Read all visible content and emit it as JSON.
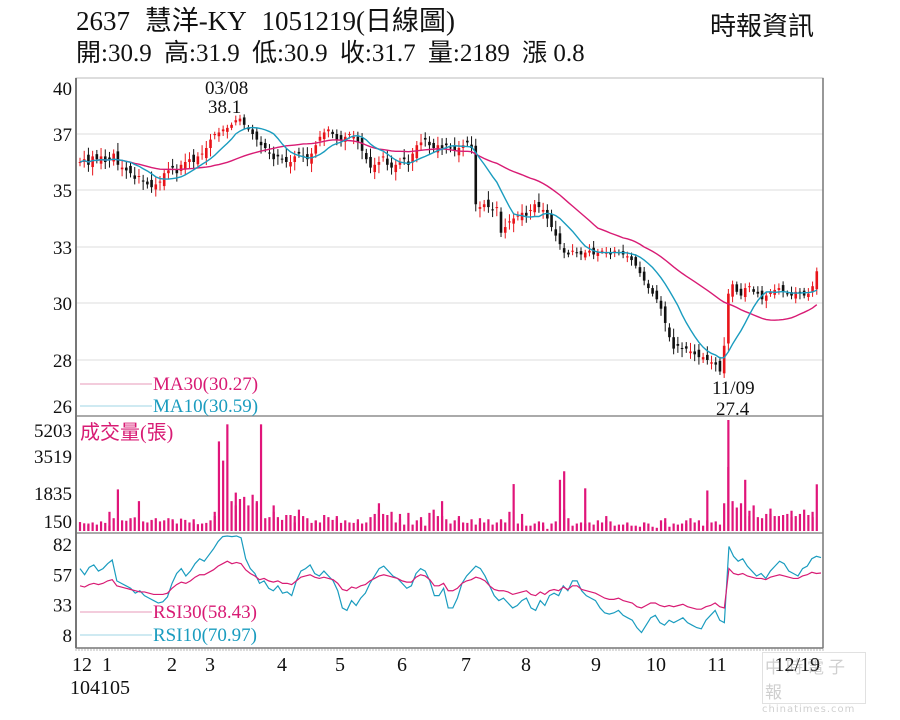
{
  "header": {
    "code": "2637",
    "name": "慧洋-KY",
    "date_label": "1051219(日線圖)",
    "source": "時報資訊"
  },
  "ohlc": [
    {
      "label": "開",
      "value": "30.9"
    },
    {
      "label": "高",
      "value": "31.9"
    },
    {
      "label": "低",
      "value": "30.9"
    },
    {
      "label": "收",
      "value": "31.7"
    },
    {
      "label": "量",
      "value": "2189"
    },
    {
      "label": "漲",
      "value": "0.8"
    }
  ],
  "colors": {
    "up": "#e8141a",
    "down": "#111111",
    "ma30": "#d81b74",
    "ma10": "#1a9cbf",
    "volume": "#e0157a",
    "grid": "#dddddd",
    "axis": "#777777"
  },
  "legend": {
    "ma30": "MA30(30.27)",
    "ma10": "MA10(30.59)",
    "volume_title": "成交量(張)",
    "rsi30": "RSI30(58.43)",
    "rsi10": "RSI10(70.97)"
  },
  "annotations": {
    "high_date": "03/08",
    "high_value": "38.1",
    "low_date": "11/09",
    "low_value": "27.4"
  },
  "watermark": {
    "top": "中時電子報",
    "bottom": "chinatimes.com"
  },
  "chart_data": {
    "type": "candlestick",
    "title": "2637 慧洋-KY 1051219(日線圖)",
    "price_axis": {
      "ticks": [
        "40",
        "37",
        "35",
        "33",
        "30",
        "28",
        "26"
      ],
      "values": [
        40,
        37,
        35,
        33,
        30,
        28,
        26
      ]
    },
    "volume_axis": {
      "ticks": [
        "5203",
        "3519",
        "1835",
        "150"
      ],
      "values": [
        5203,
        3519,
        1835,
        150
      ]
    },
    "rsi_axis": {
      "ticks": [
        "82",
        "57",
        "33",
        "8"
      ],
      "values": [
        82,
        57,
        33,
        8
      ]
    },
    "x_labels": [
      "12",
      "1",
      "2",
      "3",
      "4",
      "5",
      "6",
      "7",
      "8",
      "9",
      "10",
      "11",
      "12/19"
    ],
    "x_sub_label": "104105",
    "x_label_pos": [
      82,
      107,
      172,
      210,
      282,
      340,
      402,
      466,
      526,
      596,
      656,
      717,
      820
    ],
    "price_close": [
      36.0,
      36.1,
      35.9,
      36.2,
      36.1,
      36.2,
      36.0,
      36.1,
      36.3,
      35.9,
      35.8,
      35.7,
      35.6,
      35.4,
      35.5,
      35.3,
      35.2,
      35.1,
      35.2,
      35.3,
      35.6,
      35.7,
      35.8,
      35.6,
      35.9,
      36.0,
      36.1,
      36.0,
      36.2,
      36.3,
      36.5,
      36.8,
      37.0,
      37.1,
      37.3,
      37.4,
      37.6,
      37.9,
      38.0,
      37.6,
      37.3,
      37.0,
      36.8,
      36.6,
      36.5,
      36.3,
      36.1,
      36.2,
      36.1,
      36.0,
      36.0,
      36.2,
      36.3,
      36.2,
      36.1,
      36.3,
      36.6,
      36.9,
      37.1,
      37.3,
      37.0,
      36.8,
      36.8,
      36.9,
      37.0,
      36.9,
      36.7,
      36.4,
      36.1,
      35.8,
      35.9,
      36.0,
      36.2,
      35.9,
      35.8,
      35.9,
      36.0,
      36.1,
      35.9,
      36.3,
      36.6,
      36.7,
      36.8,
      36.6,
      36.5,
      36.6,
      36.5,
      36.6,
      36.5,
      36.4,
      36.5,
      36.6,
      36.7,
      36.5,
      34.5,
      34.4,
      34.5,
      34.4,
      34.3,
      34.4,
      33.5,
      33.7,
      33.9,
      34.0,
      34.1,
      34.2,
      34.1,
      34.3,
      34.5,
      34.4,
      34.3,
      34.0,
      33.7,
      33.4,
      33.1,
      32.7,
      32.6,
      32.8,
      32.7,
      32.6,
      32.7,
      32.8,
      32.6,
      32.7,
      32.8,
      32.7,
      32.6,
      32.8,
      32.7,
      32.6,
      32.5,
      32.3,
      32.0,
      31.6,
      31.2,
      30.8,
      30.5,
      30.2,
      29.8,
      29.3,
      28.8,
      28.4,
      28.5,
      28.4,
      28.4,
      28.3,
      28.2,
      28.1,
      28.1,
      28.0,
      27.9,
      27.8,
      27.5,
      28.5,
      30.5,
      31.0,
      30.6,
      30.4,
      30.8,
      30.9,
      30.6,
      30.5,
      30.2,
      30.4,
      30.6,
      30.7,
      30.8,
      30.6,
      30.5,
      30.4,
      30.6,
      30.5,
      30.4,
      30.5,
      30.9,
      31.7
    ],
    "volume": [
      420,
      360,
      280,
      350,
      400,
      300,
      450,
      380,
      250,
      900,
      600,
      1950,
      500,
      480,
      520,
      600,
      640,
      1400,
      450,
      400,
      520,
      480,
      600,
      450,
      500,
      600,
      550,
      480,
      350,
      580,
      520,
      400,
      550,
      350,
      320,
      350,
      380,
      500,
      900,
      700,
      4200,
      3300,
      5000,
      1400,
      1200,
      1800,
      1500,
      1600,
      1200,
      1700,
      1400,
      1300,
      5000,
      600,
      650,
      900,
      1200,
      650,
      520,
      750,
      750,
      400,
      700,
      1000,
      700,
      600,
      380,
      500,
      480,
      400,
      750,
      650,
      520,
      600,
      700,
      380,
      500,
      400,
      380,
      550,
      400,
      350,
      400,
      650,
      800,
      1000,
      1300,
      800,
      750,
      900,
      400,
      800,
      550,
      300,
      850,
      300,
      500,
      650,
      500,
      250,
      850,
      1000,
      700,
      1400,
      700,
      550,
      350,
      500,
      700,
      600,
      400,
      380,
      550,
      300,
      600,
      400,
      400,
      550,
      300,
      400,
      500,
      550,
      400,
      900,
      2200,
      350,
      800,
      300,
      250,
      250,
      350,
      450,
      400,
      250,
      100,
      350,
      450,
      2400,
      2800,
      1000,
      600,
      250,
      350,
      400,
      350,
      2000,
      400,
      300,
      500,
      400,
      700,
      500,
      450,
      250,
      300,
      300,
      400,
      350,
      250,
      250,
      200,
      400,
      400,
      350,
      200,
      150,
      500,
      400,
      600,
      200,
      350,
      300,
      350,
      500,
      350,
      600,
      400,
      500,
      250,
      1900,
      500,
      400,
      450,
      300,
      1300,
      3000,
      5203,
      1400,
      1100,
      1300,
      2400,
      700,
      950,
      1200,
      650,
      600,
      800,
      800,
      1050,
      700,
      700,
      750,
      800,
      650,
      950,
      700,
      800,
      1000,
      750,
      650,
      900,
      2189
    ],
    "rsi10": [
      62,
      57,
      63,
      65,
      60,
      62,
      66,
      69,
      52,
      50,
      48,
      46,
      42,
      44,
      40,
      38,
      36,
      34,
      35,
      39,
      50,
      58,
      62,
      56,
      60,
      66,
      70,
      68,
      73,
      78,
      84,
      88,
      92,
      88,
      90,
      87,
      70,
      62,
      58,
      50,
      52,
      46,
      44,
      48,
      42,
      43,
      40,
      52,
      60,
      62,
      65,
      58,
      56,
      60,
      56,
      52,
      44,
      30,
      28,
      36,
      32,
      38,
      42,
      50,
      56,
      62,
      64,
      60,
      56,
      54,
      50,
      46,
      48,
      58,
      62,
      60,
      52,
      40,
      40,
      46,
      30,
      30,
      38,
      50,
      56,
      60,
      64,
      62,
      56,
      48,
      40,
      36,
      38,
      34,
      30,
      32,
      36,
      38,
      30,
      28,
      36,
      32,
      40,
      42,
      40,
      48,
      44,
      52,
      52,
      44,
      40,
      38,
      36,
      30,
      26,
      25,
      26,
      28,
      24,
      22,
      20,
      14,
      10,
      16,
      22,
      24,
      18,
      16,
      20,
      18,
      20,
      22,
      18,
      16,
      14,
      13,
      20,
      24,
      28,
      20,
      18,
      80,
      72,
      68,
      70,
      64,
      60,
      56,
      58,
      54,
      60,
      64,
      68,
      66,
      60,
      58,
      56,
      62,
      64,
      70,
      72,
      71
    ],
    "rsi30": [
      48,
      47,
      49,
      50,
      49,
      50,
      52,
      53,
      48,
      47,
      46,
      45,
      44,
      43,
      43,
      42,
      41,
      41,
      41,
      42,
      46,
      49,
      51,
      50,
      52,
      55,
      57,
      57,
      59,
      61,
      64,
      66,
      68,
      66,
      67,
      66,
      61,
      58,
      56,
      53,
      54,
      52,
      51,
      52,
      50,
      50,
      49,
      52,
      55,
      56,
      57,
      55,
      54,
      55,
      54,
      53,
      50,
      45,
      44,
      47,
      46,
      48,
      49,
      52,
      54,
      56,
      57,
      56,
      55,
      54,
      52,
      51,
      51,
      55,
      57,
      56,
      53,
      48,
      48,
      50,
      44,
      44,
      46,
      50,
      52,
      53,
      55,
      54,
      52,
      48,
      45,
      44,
      44,
      43,
      41,
      42,
      43,
      44,
      41,
      40,
      43,
      41,
      44,
      45,
      44,
      47,
      45,
      48,
      48,
      45,
      44,
      43,
      42,
      40,
      38,
      37,
      37,
      38,
      36,
      35,
      34,
      31,
      30,
      32,
      34,
      34,
      32,
      31,
      32,
      31,
      32,
      33,
      31,
      30,
      29,
      29,
      31,
      32,
      34,
      31,
      30,
      62,
      58,
      57,
      58,
      56,
      55,
      54,
      54,
      53,
      55,
      56,
      57,
      56,
      55,
      54,
      54,
      56,
      57,
      59,
      58,
      58.43
    ],
    "ma10_legend": "MA10(30.59)",
    "ma30_legend": "MA30(30.27)",
    "annotations": [
      {
        "label": "03/08",
        "value": 38.1
      },
      {
        "label": "11/09",
        "value": 27.4
      }
    ]
  }
}
